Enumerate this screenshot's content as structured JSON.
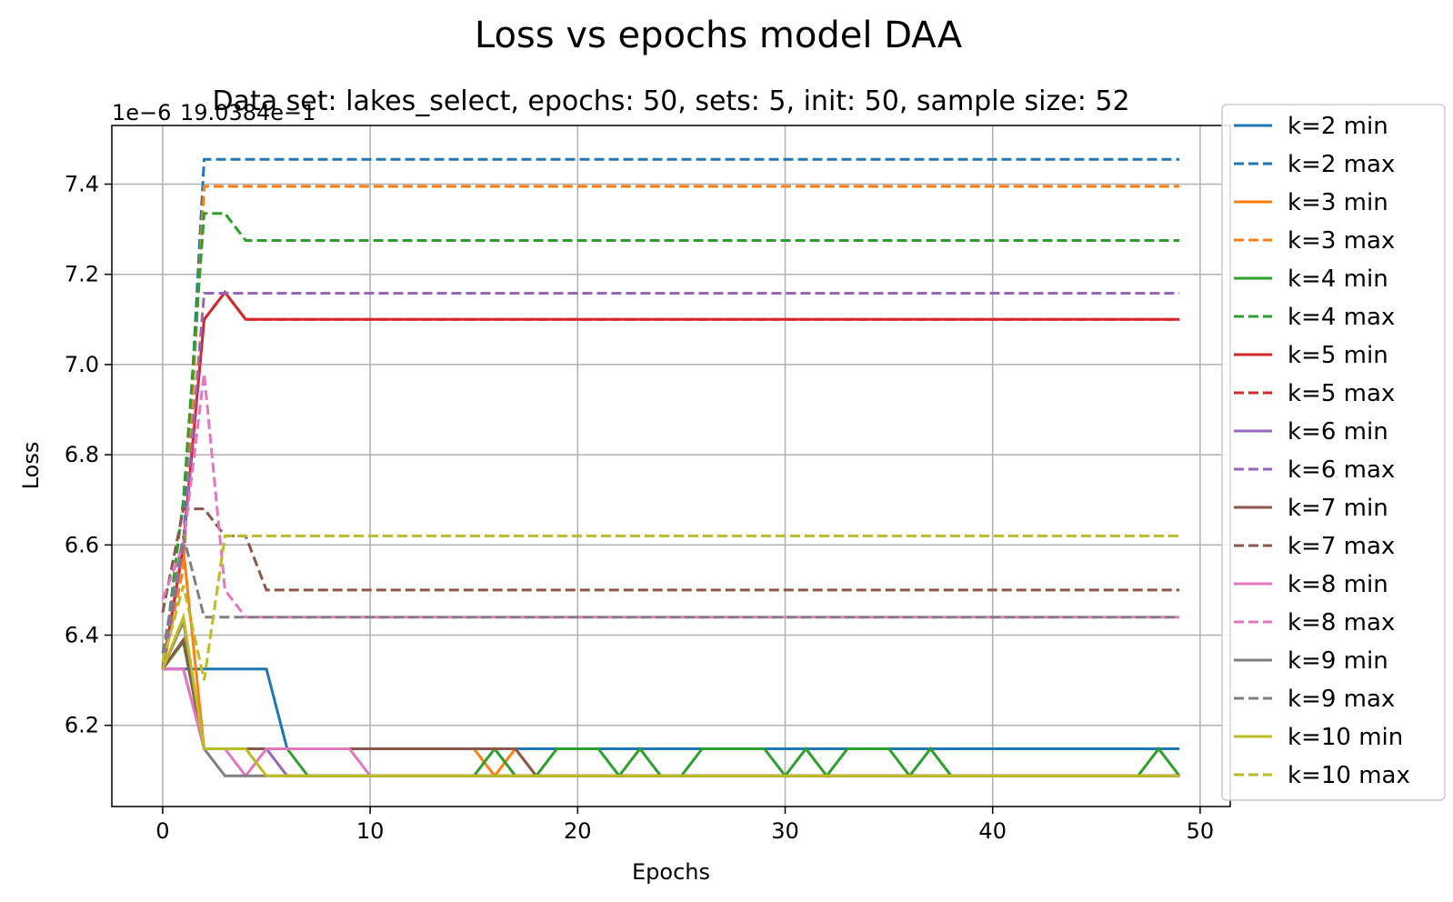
{
  "chart_data": {
    "type": "line",
    "title": "Loss vs epochs model DAA",
    "subtitle": "Data set: lakes_select, epochs: 50, sets: 5, init: 50, sample size: 52",
    "offset_text": "1e−6",
    "offset_text_2": "19.0384e−1",
    "xlabel": "Epochs",
    "ylabel": "Loss",
    "xlim": [
      -2.45,
      51.45
    ],
    "ylim": [
      6.02,
      7.53
    ],
    "xticks": [
      0,
      10,
      20,
      30,
      40,
      50
    ],
    "yticks": [
      6.2,
      6.4,
      6.6,
      6.8,
      7.0,
      7.2,
      7.4
    ],
    "xtick_labels": [
      "0",
      "10",
      "20",
      "30",
      "40",
      "50"
    ],
    "ytick_labels": [
      "6.2",
      "6.4",
      "6.6",
      "6.8",
      "7.0",
      "7.2",
      "7.4"
    ],
    "grid": true,
    "legend_position": "right",
    "series": [
      {
        "name": "k=2 min",
        "color": "#1f77b4",
        "dash": false,
        "values": [
          6.325,
          6.325,
          6.325,
          6.325,
          6.325,
          6.325,
          6.148,
          6.148,
          6.148,
          6.148,
          6.148,
          6.148,
          6.148,
          6.148,
          6.148,
          6.148,
          6.148,
          6.148,
          6.148,
          6.148,
          6.148,
          6.148,
          6.148,
          6.148,
          6.148,
          6.148,
          6.148,
          6.148,
          6.148,
          6.148,
          6.148,
          6.148,
          6.148,
          6.148,
          6.148,
          6.148,
          6.148,
          6.148,
          6.148,
          6.148,
          6.148,
          6.148,
          6.148,
          6.148,
          6.148,
          6.148,
          6.148,
          6.148,
          6.148,
          6.148
        ]
      },
      {
        "name": "k=2 max",
        "color": "#1f77b4",
        "dash": true,
        "values": [
          6.325,
          6.6,
          7.455,
          7.455,
          7.455,
          7.455,
          7.455,
          7.455,
          7.455,
          7.455,
          7.455,
          7.455,
          7.455,
          7.455,
          7.455,
          7.455,
          7.455,
          7.455,
          7.455,
          7.455,
          7.455,
          7.455,
          7.455,
          7.455,
          7.455,
          7.455,
          7.455,
          7.455,
          7.455,
          7.455,
          7.455,
          7.455,
          7.455,
          7.455,
          7.455,
          7.455,
          7.455,
          7.455,
          7.455,
          7.455,
          7.455,
          7.455,
          7.455,
          7.455,
          7.455,
          7.455,
          7.455,
          7.455,
          7.455,
          7.455
        ]
      },
      {
        "name": "k=3 min",
        "color": "#ff7f0e",
        "dash": false,
        "values": [
          6.325,
          6.59,
          6.148,
          6.148,
          6.148,
          6.148,
          6.148,
          6.148,
          6.148,
          6.148,
          6.148,
          6.148,
          6.148,
          6.148,
          6.148,
          6.148,
          6.088,
          6.148,
          6.088,
          6.088,
          6.088,
          6.088,
          6.088,
          6.088,
          6.088,
          6.088,
          6.088,
          6.088,
          6.088,
          6.088,
          6.088,
          6.088,
          6.088,
          6.088,
          6.088,
          6.088,
          6.088,
          6.088,
          6.088,
          6.088,
          6.088,
          6.088,
          6.088,
          6.088,
          6.088,
          6.088,
          6.088,
          6.088,
          6.088,
          6.088
        ]
      },
      {
        "name": "k=3 max",
        "color": "#ff7f0e",
        "dash": true,
        "values": [
          6.325,
          6.55,
          7.395,
          7.395,
          7.395,
          7.395,
          7.395,
          7.395,
          7.395,
          7.395,
          7.395,
          7.395,
          7.395,
          7.395,
          7.395,
          7.395,
          7.395,
          7.395,
          7.395,
          7.395,
          7.395,
          7.395,
          7.395,
          7.395,
          7.395,
          7.395,
          7.395,
          7.395,
          7.395,
          7.395,
          7.395,
          7.395,
          7.395,
          7.395,
          7.395,
          7.395,
          7.395,
          7.395,
          7.395,
          7.395,
          7.395,
          7.395,
          7.395,
          7.395,
          7.395,
          7.395,
          7.395,
          7.395,
          7.395,
          7.395
        ]
      },
      {
        "name": "k=4 min",
        "color": "#2ca02c",
        "dash": false,
        "values": [
          6.325,
          6.385,
          6.148,
          6.148,
          6.148,
          6.148,
          6.148,
          6.088,
          6.088,
          6.088,
          6.088,
          6.088,
          6.088,
          6.088,
          6.088,
          6.088,
          6.148,
          6.088,
          6.088,
          6.148,
          6.148,
          6.148,
          6.088,
          6.148,
          6.088,
          6.088,
          6.148,
          6.148,
          6.148,
          6.148,
          6.088,
          6.148,
          6.088,
          6.148,
          6.148,
          6.148,
          6.088,
          6.148,
          6.088,
          6.088,
          6.088,
          6.088,
          6.088,
          6.088,
          6.088,
          6.088,
          6.088,
          6.088,
          6.148,
          6.088
        ]
      },
      {
        "name": "k=4 max",
        "color": "#2ca02c",
        "dash": true,
        "values": [
          6.325,
          6.7,
          7.335,
          7.335,
          7.275,
          7.275,
          7.275,
          7.275,
          7.275,
          7.275,
          7.275,
          7.275,
          7.275,
          7.275,
          7.275,
          7.275,
          7.275,
          7.275,
          7.275,
          7.275,
          7.275,
          7.275,
          7.275,
          7.275,
          7.275,
          7.275,
          7.275,
          7.275,
          7.275,
          7.275,
          7.275,
          7.275,
          7.275,
          7.275,
          7.275,
          7.275,
          7.275,
          7.275,
          7.275,
          7.275,
          7.275,
          7.275,
          7.275,
          7.275,
          7.275,
          7.275,
          7.275,
          7.275,
          7.275,
          7.275
        ]
      },
      {
        "name": "k=5 min",
        "color": "#d62728",
        "dash": false,
        "values": [
          6.325,
          6.6,
          7.1,
          7.16,
          7.1,
          7.1,
          7.1,
          7.1,
          7.1,
          7.1,
          7.1,
          7.1,
          7.1,
          7.1,
          7.1,
          7.1,
          7.1,
          7.1,
          7.1,
          7.1,
          7.1,
          7.1,
          7.1,
          7.1,
          7.1,
          7.1,
          7.1,
          7.1,
          7.1,
          7.1,
          7.1,
          7.1,
          7.1,
          7.1,
          7.1,
          7.1,
          7.1,
          7.1,
          7.1,
          7.1,
          7.1,
          7.1,
          7.1,
          7.1,
          7.1,
          7.1,
          7.1,
          7.1,
          7.1,
          7.1
        ]
      },
      {
        "name": "k=5 max",
        "color": "#d62728",
        "dash": true,
        "values": [
          6.325,
          6.6,
          7.1,
          7.16,
          7.1,
          7.1,
          7.1,
          7.1,
          7.1,
          7.1,
          7.1,
          7.1,
          7.1,
          7.1,
          7.1,
          7.1,
          7.1,
          7.1,
          7.1,
          7.1,
          7.1,
          7.1,
          7.1,
          7.1,
          7.1,
          7.1,
          7.1,
          7.1,
          7.1,
          7.1,
          7.1,
          7.1,
          7.1,
          7.1,
          7.1,
          7.1,
          7.1,
          7.1,
          7.1,
          7.1,
          7.1,
          7.1,
          7.1,
          7.1,
          7.1,
          7.1,
          7.1,
          7.1,
          7.1,
          7.1
        ]
      },
      {
        "name": "k=6 min",
        "color": "#9467bd",
        "dash": false,
        "values": [
          6.325,
          6.325,
          6.148,
          6.148,
          6.148,
          6.148,
          6.088,
          6.088,
          6.088,
          6.088,
          6.088,
          6.088,
          6.088,
          6.088,
          6.088,
          6.088,
          6.088,
          6.088,
          6.088,
          6.088,
          6.088,
          6.088,
          6.088,
          6.088,
          6.088,
          6.088,
          6.088,
          6.088,
          6.088,
          6.088,
          6.088,
          6.088,
          6.088,
          6.088,
          6.088,
          6.088,
          6.088,
          6.088,
          6.088,
          6.088,
          6.088,
          6.088,
          6.088,
          6.088,
          6.088,
          6.088,
          6.088,
          6.088,
          6.088,
          6.088
        ]
      },
      {
        "name": "k=6 max",
        "color": "#9467bd",
        "dash": true,
        "values": [
          6.325,
          6.6,
          7.158,
          7.158,
          7.158,
          7.158,
          7.158,
          7.158,
          7.158,
          7.158,
          7.158,
          7.158,
          7.158,
          7.158,
          7.158,
          7.158,
          7.158,
          7.158,
          7.158,
          7.158,
          7.158,
          7.158,
          7.158,
          7.158,
          7.158,
          7.158,
          7.158,
          7.158,
          7.158,
          7.158,
          7.158,
          7.158,
          7.158,
          7.158,
          7.158,
          7.158,
          7.158,
          7.158,
          7.158,
          7.158,
          7.158,
          7.158,
          7.158,
          7.158,
          7.158,
          7.158,
          7.158,
          7.158,
          7.158,
          7.158
        ]
      },
      {
        "name": "k=7 min",
        "color": "#8c564b",
        "dash": false,
        "values": [
          6.325,
          6.39,
          6.148,
          6.148,
          6.148,
          6.148,
          6.148,
          6.148,
          6.148,
          6.148,
          6.148,
          6.148,
          6.148,
          6.148,
          6.148,
          6.148,
          6.148,
          6.148,
          6.088,
          6.088,
          6.088,
          6.088,
          6.088,
          6.088,
          6.088,
          6.088,
          6.088,
          6.088,
          6.088,
          6.088,
          6.088,
          6.088,
          6.088,
          6.088,
          6.088,
          6.088,
          6.088,
          6.088,
          6.088,
          6.088,
          6.088,
          6.088,
          6.088,
          6.088,
          6.088,
          6.088,
          6.088,
          6.088,
          6.088,
          6.088
        ]
      },
      {
        "name": "k=7 max",
        "color": "#8c564b",
        "dash": true,
        "values": [
          6.45,
          6.68,
          6.68,
          6.62,
          6.62,
          6.5,
          6.5,
          6.5,
          6.5,
          6.5,
          6.5,
          6.5,
          6.5,
          6.5,
          6.5,
          6.5,
          6.5,
          6.5,
          6.5,
          6.5,
          6.5,
          6.5,
          6.5,
          6.5,
          6.5,
          6.5,
          6.5,
          6.5,
          6.5,
          6.5,
          6.5,
          6.5,
          6.5,
          6.5,
          6.5,
          6.5,
          6.5,
          6.5,
          6.5,
          6.5,
          6.5,
          6.5,
          6.5,
          6.5,
          6.5,
          6.5,
          6.5,
          6.5,
          6.5,
          6.5
        ]
      },
      {
        "name": "k=8 min",
        "color": "#e377c2",
        "dash": false,
        "values": [
          6.325,
          6.325,
          6.148,
          6.148,
          6.088,
          6.148,
          6.148,
          6.148,
          6.148,
          6.148,
          6.088,
          6.088,
          6.088,
          6.088,
          6.088,
          6.088,
          6.088,
          6.088,
          6.088,
          6.088,
          6.088,
          6.088,
          6.088,
          6.088,
          6.088,
          6.088,
          6.088,
          6.088,
          6.088,
          6.088,
          6.088,
          6.088,
          6.088,
          6.088,
          6.088,
          6.088,
          6.088,
          6.088,
          6.088,
          6.088,
          6.088,
          6.088,
          6.088,
          6.088,
          6.088,
          6.088,
          6.088,
          6.088,
          6.088,
          6.088
        ]
      },
      {
        "name": "k=8 max",
        "color": "#e377c2",
        "dash": true,
        "values": [
          6.48,
          6.6,
          6.98,
          6.5,
          6.44,
          6.44,
          6.44,
          6.44,
          6.44,
          6.44,
          6.44,
          6.44,
          6.44,
          6.44,
          6.44,
          6.44,
          6.44,
          6.44,
          6.44,
          6.44,
          6.44,
          6.44,
          6.44,
          6.44,
          6.44,
          6.44,
          6.44,
          6.44,
          6.44,
          6.44,
          6.44,
          6.44,
          6.44,
          6.44,
          6.44,
          6.44,
          6.44,
          6.44,
          6.44,
          6.44,
          6.44,
          6.44,
          6.44,
          6.44,
          6.44,
          6.44,
          6.44,
          6.44,
          6.44,
          6.44
        ]
      },
      {
        "name": "k=9 min",
        "color": "#7f7f7f",
        "dash": false,
        "values": [
          6.325,
          6.43,
          6.148,
          6.088,
          6.088,
          6.088,
          6.088,
          6.088,
          6.088,
          6.088,
          6.088,
          6.088,
          6.088,
          6.088,
          6.088,
          6.088,
          6.088,
          6.088,
          6.088,
          6.088,
          6.088,
          6.088,
          6.088,
          6.088,
          6.088,
          6.088,
          6.088,
          6.088,
          6.088,
          6.088,
          6.088,
          6.088,
          6.088,
          6.088,
          6.088,
          6.088,
          6.088,
          6.088,
          6.088,
          6.088,
          6.088,
          6.088,
          6.088,
          6.088,
          6.088,
          6.088,
          6.088,
          6.088,
          6.088,
          6.088
        ]
      },
      {
        "name": "k=9 max",
        "color": "#7f7f7f",
        "dash": true,
        "values": [
          6.36,
          6.62,
          6.44,
          6.44,
          6.44,
          6.44,
          6.44,
          6.44,
          6.44,
          6.44,
          6.44,
          6.44,
          6.44,
          6.44,
          6.44,
          6.44,
          6.44,
          6.44,
          6.44,
          6.44,
          6.44,
          6.44,
          6.44,
          6.44,
          6.44,
          6.44,
          6.44,
          6.44,
          6.44,
          6.44,
          6.44,
          6.44,
          6.44,
          6.44,
          6.44,
          6.44,
          6.44,
          6.44,
          6.44,
          6.44,
          6.44,
          6.44,
          6.44,
          6.44,
          6.44,
          6.44,
          6.44,
          6.44,
          6.44,
          6.44
        ]
      },
      {
        "name": "k=10 min",
        "color": "#bcbd22",
        "dash": false,
        "values": [
          6.325,
          6.44,
          6.148,
          6.148,
          6.148,
          6.088,
          6.088,
          6.088,
          6.088,
          6.088,
          6.088,
          6.088,
          6.088,
          6.088,
          6.088,
          6.088,
          6.088,
          6.088,
          6.088,
          6.088,
          6.088,
          6.088,
          6.088,
          6.088,
          6.088,
          6.088,
          6.088,
          6.088,
          6.088,
          6.088,
          6.088,
          6.088,
          6.088,
          6.088,
          6.088,
          6.088,
          6.088,
          6.088,
          6.088,
          6.088,
          6.088,
          6.088,
          6.088,
          6.088,
          6.088,
          6.088,
          6.088,
          6.088,
          6.088,
          6.088
        ]
      },
      {
        "name": "k=10 max",
        "color": "#bcbd22",
        "dash": true,
        "values": [
          6.34,
          6.51,
          6.3,
          6.62,
          6.62,
          6.62,
          6.62,
          6.62,
          6.62,
          6.62,
          6.62,
          6.62,
          6.62,
          6.62,
          6.62,
          6.62,
          6.62,
          6.62,
          6.62,
          6.62,
          6.62,
          6.62,
          6.62,
          6.62,
          6.62,
          6.62,
          6.62,
          6.62,
          6.62,
          6.62,
          6.62,
          6.62,
          6.62,
          6.62,
          6.62,
          6.62,
          6.62,
          6.62,
          6.62,
          6.62,
          6.62,
          6.62,
          6.62,
          6.62,
          6.62,
          6.62,
          6.62,
          6.62,
          6.62,
          6.62
        ]
      }
    ]
  }
}
